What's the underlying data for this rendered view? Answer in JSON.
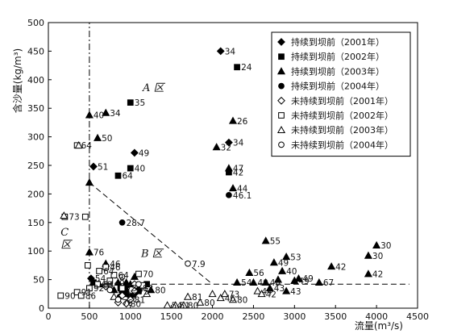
{
  "chart_data": {
    "type": "scatter",
    "xlabel": "流量(m³/s)",
    "ylabel": "含沙量(kg/m³)",
    "xlim": [
      0,
      4500
    ],
    "ylim": [
      0,
      500
    ],
    "xticks": [
      "0",
      "500",
      "1000",
      "1500",
      "2000",
      "2500",
      "3000",
      "3500",
      "4000",
      "4500"
    ],
    "yticks": [
      "0",
      "50",
      "100",
      "150",
      "200",
      "250",
      "300",
      "350",
      "400",
      "450",
      "500"
    ],
    "grid": false,
    "legend_position": "top-right",
    "region_labels": [
      {
        "text": "A 区",
        "x": 1150,
        "y": 380
      },
      {
        "text": "B 区",
        "x": 1130,
        "y": 90
      },
      {
        "text": "C",
        "x": 150,
        "y": 127
      },
      {
        "text": "区",
        "x": 150,
        "y": 105
      }
    ],
    "reference_lines": [
      {
        "kind": "vertical",
        "x": 500,
        "y_range": [
          0,
          500
        ]
      },
      {
        "kind": "horizontal",
        "y": 42,
        "x_range": [
          500,
          4400
        ]
      },
      {
        "kind": "segment",
        "from": [
          500,
          220
        ],
        "to": [
          2000,
          42
        ]
      }
    ],
    "series": [
      {
        "name": "持续到坝前（2001年）",
        "marker": "diamond",
        "filled": true,
        "points": [
          [
            2100,
            450,
            "34"
          ],
          [
            550,
            248,
            "51"
          ],
          [
            1050,
            272,
            "49"
          ],
          [
            2200,
            290,
            "34"
          ],
          [
            520,
            52,
            "54"
          ],
          [
            1000,
            20,
            ""
          ],
          [
            1050,
            25,
            ""
          ],
          [
            950,
            38,
            ""
          ],
          [
            900,
            28,
            ""
          ]
        ]
      },
      {
        "name": "持续到坝前（2002年）",
        "marker": "square",
        "filled": true,
        "points": [
          [
            2300,
            422,
            "24"
          ],
          [
            1000,
            360,
            "35"
          ],
          [
            1000,
            245,
            "40"
          ],
          [
            850,
            232,
            "64"
          ],
          [
            2200,
            238,
            "42"
          ],
          [
            1100,
            30,
            ""
          ],
          [
            950,
            25,
            ""
          ],
          [
            880,
            35,
            ""
          ],
          [
            1200,
            42,
            ""
          ],
          [
            550,
            45,
            ""
          ]
        ]
      },
      {
        "name": "持续到坝前（2003年）",
        "marker": "triangle",
        "filled": true,
        "points": [
          [
            500,
            338,
            "40"
          ],
          [
            700,
            342,
            "34"
          ],
          [
            600,
            298,
            "50"
          ],
          [
            2250,
            328,
            "26"
          ],
          [
            2050,
            282,
            "32"
          ],
          [
            2200,
            245,
            "47"
          ],
          [
            2250,
            210,
            "44"
          ],
          [
            500,
            220,
            ""
          ],
          [
            500,
            98,
            "76"
          ],
          [
            2650,
            118,
            "55"
          ],
          [
            2450,
            62,
            "56"
          ],
          [
            2750,
            80,
            "49"
          ],
          [
            2900,
            90,
            "53"
          ],
          [
            2850,
            65,
            "40"
          ],
          [
            3000,
            48,
            "49"
          ],
          [
            2650,
            45,
            "48"
          ],
          [
            2700,
            35,
            "43"
          ],
          [
            2900,
            30,
            "43"
          ],
          [
            3050,
            52,
            "49"
          ],
          [
            3300,
            45,
            "67"
          ],
          [
            3450,
            73,
            "42"
          ],
          [
            3900,
            92,
            "30"
          ],
          [
            4000,
            110,
            "30"
          ],
          [
            3900,
            60,
            "42"
          ],
          [
            2300,
            45,
            "54"
          ],
          [
            2500,
            45,
            "40"
          ],
          [
            700,
            78,
            "46"
          ],
          [
            620,
            42,
            "84"
          ],
          [
            800,
            32,
            ""
          ],
          [
            850,
            45,
            ""
          ],
          [
            950,
            45,
            ""
          ],
          [
            1050,
            55,
            ""
          ],
          [
            1100,
            35,
            "82"
          ],
          [
            1250,
            32,
            "80"
          ],
          [
            1000,
            42,
            ""
          ],
          [
            3000,
            48,
            ""
          ],
          [
            2800,
            50,
            ""
          ]
        ]
      },
      {
        "name": "持续到坝前（2004年）",
        "marker": "circle",
        "filled": true,
        "points": [
          [
            2200,
            198,
            "46.1"
          ],
          [
            900,
            150,
            "28.7"
          ],
          [
            950,
            30,
            ""
          ],
          [
            870,
            20,
            ""
          ]
        ]
      },
      {
        "name": "未持续到坝前（2001年）",
        "marker": "diamond",
        "filled": false,
        "points": [
          [
            900,
            22,
            "75"
          ],
          [
            1000,
            15,
            "81"
          ],
          [
            850,
            10,
            "76"
          ],
          [
            950,
            8,
            "80"
          ],
          [
            1050,
            30,
            "75"
          ],
          [
            700,
            38,
            ""
          ],
          [
            1050,
            42,
            ""
          ]
        ]
      },
      {
        "name": "未持续到坝前（2002年）",
        "marker": "square",
        "filled": false,
        "points": [
          [
            350,
            285,
            "64"
          ],
          [
            200,
            160,
            "73"
          ],
          [
            450,
            160,
            ""
          ],
          [
            150,
            22,
            "90"
          ],
          [
            350,
            28,
            "91"
          ],
          [
            400,
            22,
            "86"
          ],
          [
            500,
            35,
            "92"
          ],
          [
            600,
            42,
            "68"
          ],
          [
            480,
            75,
            ""
          ],
          [
            620,
            65,
            "64"
          ],
          [
            700,
            72,
            "46"
          ],
          [
            750,
            48,
            "28"
          ],
          [
            800,
            58,
            "64"
          ],
          [
            1100,
            60,
            "70"
          ],
          [
            900,
            35,
            "75"
          ],
          [
            1150,
            40,
            ""
          ]
        ]
      },
      {
        "name": "未持续到坝前（2003年）",
        "marker": "triangle",
        "filled": false,
        "points": [
          [
            370,
            285,
            ""
          ],
          [
            190,
            162,
            ""
          ],
          [
            1450,
            5,
            "54"
          ],
          [
            1550,
            5,
            "51"
          ],
          [
            1650,
            5,
            "80"
          ],
          [
            1700,
            20,
            "81"
          ],
          [
            1850,
            10,
            "80"
          ],
          [
            2000,
            25,
            ""
          ],
          [
            2100,
            18,
            "46"
          ],
          [
            2150,
            25,
            "73"
          ],
          [
            2250,
            15,
            "80"
          ],
          [
            2550,
            30,
            "44"
          ],
          [
            2600,
            25,
            "42"
          ],
          [
            800,
            20,
            ""
          ],
          [
            1200,
            25,
            ""
          ]
        ]
      },
      {
        "name": "未持续到坝前（2004年）",
        "marker": "circle",
        "filled": false,
        "points": [
          [
            1700,
            78,
            "7.9"
          ],
          [
            750,
            32,
            ""
          ],
          [
            850,
            15,
            ""
          ],
          [
            1100,
            42,
            ""
          ],
          [
            900,
            55,
            ""
          ]
        ]
      }
    ]
  }
}
